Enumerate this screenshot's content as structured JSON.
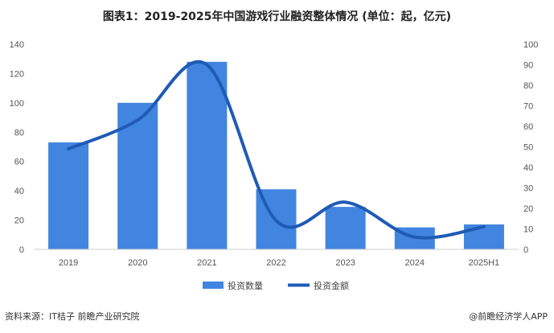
{
  "chart_data": {
    "type": "bar",
    "title": "图表1：2019-2025年中国游戏行业融资整体情况 (单位：起，亿元)",
    "categories": [
      "2019",
      "2020",
      "2021",
      "2022",
      "2023",
      "2024",
      "2025H1"
    ],
    "series": [
      {
        "name": "投资数量",
        "type": "bar",
        "axis": "left",
        "color": "#4285e0",
        "values": [
          73,
          100,
          128,
          41,
          29,
          15,
          17
        ]
      },
      {
        "name": "投资金额",
        "type": "line",
        "axis": "right",
        "smooth": true,
        "color": "#1f5bb5",
        "values": [
          49,
          63,
          90,
          14,
          23,
          6,
          11
        ]
      }
    ],
    "y_left": {
      "range": [
        0,
        140
      ],
      "ticks": [
        0,
        20,
        40,
        60,
        80,
        100,
        120,
        140
      ]
    },
    "y_right": {
      "range": [
        0,
        100
      ],
      "ticks": [
        0,
        10,
        20,
        30,
        40,
        50,
        60,
        70,
        80,
        90,
        100
      ]
    },
    "grid": false,
    "legend_placement": "bottom"
  },
  "footer": {
    "source": "资料来源：IT桔子 前瞻产业研究院",
    "brand": "@前瞻经济学人APP"
  }
}
